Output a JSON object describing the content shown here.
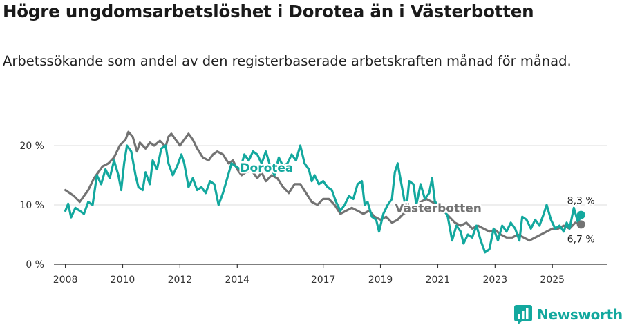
{
  "title": "Högre ungdomsarbetslöshet i Dorotea än i Västerbotten",
  "subtitle": "Arbetssökande som andel av den registerbaserade arbetskraften månad för månad.",
  "brand": {
    "name": "Newsworthy",
    "icon": "newsworthy-logo-icon"
  },
  "colors": {
    "dorotea": "#13a89e",
    "vasterbotten": "#737373",
    "grid": "#dddddd",
    "axis": "#333333"
  },
  "chart_data": {
    "type": "line",
    "title": "Högre ungdomsarbetslöshet i Dorotea än i Västerbotten",
    "xlabel": "",
    "ylabel": "",
    "x_range": [
      2007.6,
      2026.9
    ],
    "ylim": [
      0,
      20
    ],
    "y_ticks": [
      0,
      10,
      20
    ],
    "y_tick_labels": [
      "0 %",
      "10 %",
      "20 %"
    ],
    "x_ticks": [
      2008,
      2010,
      2012,
      2014,
      2017,
      2019,
      2021,
      2023,
      2025
    ],
    "x_tick_labels": [
      "2008",
      "2010",
      "2012",
      "2014",
      "2017",
      "2019",
      "2021",
      "2023",
      "2025"
    ],
    "grid": true,
    "series": [
      {
        "name": "Västerbotten",
        "label": "Västerbotten",
        "label_anchor": [
          2019.5,
          8.8
        ],
        "end_label": "6,7 %",
        "color": "#737373",
        "points": [
          [
            2008.0,
            12.5
          ],
          [
            2008.3,
            11.5
          ],
          [
            2008.5,
            10.5
          ],
          [
            2008.8,
            12.5
          ],
          [
            2009.0,
            14.5
          ],
          [
            2009.3,
            16.5
          ],
          [
            2009.5,
            17.0
          ],
          [
            2009.7,
            18.0
          ],
          [
            2009.9,
            20.0
          ],
          [
            2010.1,
            21.0
          ],
          [
            2010.2,
            22.3
          ],
          [
            2010.35,
            21.5
          ],
          [
            2010.5,
            19.0
          ],
          [
            2010.6,
            20.5
          ],
          [
            2010.8,
            19.5
          ],
          [
            2010.95,
            20.5
          ],
          [
            2011.1,
            20.0
          ],
          [
            2011.3,
            20.8
          ],
          [
            2011.5,
            19.8
          ],
          [
            2011.6,
            21.5
          ],
          [
            2011.7,
            22.0
          ],
          [
            2011.85,
            21.0
          ],
          [
            2012.0,
            20.0
          ],
          [
            2012.15,
            21.0
          ],
          [
            2012.3,
            22.0
          ],
          [
            2012.45,
            21.0
          ],
          [
            2012.6,
            19.5
          ],
          [
            2012.8,
            18.0
          ],
          [
            2013.0,
            17.5
          ],
          [
            2013.15,
            18.5
          ],
          [
            2013.3,
            19.0
          ],
          [
            2013.5,
            18.5
          ],
          [
            2013.7,
            17.0
          ],
          [
            2013.85,
            17.5
          ],
          [
            2014.0,
            16.0
          ],
          [
            2014.15,
            15.0
          ],
          [
            2014.3,
            15.5
          ],
          [
            2014.5,
            15.8
          ],
          [
            2014.7,
            14.5
          ],
          [
            2014.85,
            15.5
          ],
          [
            2015.0,
            14.0
          ],
          [
            2015.2,
            15.0
          ],
          [
            2015.4,
            14.5
          ],
          [
            2015.6,
            13.0
          ],
          [
            2015.8,
            12.0
          ],
          [
            2016.0,
            13.5
          ],
          [
            2016.2,
            13.5
          ],
          [
            2016.4,
            12.0
          ],
          [
            2016.6,
            10.5
          ],
          [
            2016.8,
            10.0
          ],
          [
            2017.0,
            11.0
          ],
          [
            2017.2,
            11.0
          ],
          [
            2017.4,
            10.0
          ],
          [
            2017.6,
            8.5
          ],
          [
            2017.8,
            9.0
          ],
          [
            2018.0,
            9.5
          ],
          [
            2018.2,
            9.0
          ],
          [
            2018.4,
            8.5
          ],
          [
            2018.6,
            9.0
          ],
          [
            2018.8,
            8.0
          ],
          [
            2019.0,
            7.5
          ],
          [
            2019.2,
            8.0
          ],
          [
            2019.4,
            7.0
          ],
          [
            2019.6,
            7.5
          ],
          [
            2019.8,
            8.5
          ],
          [
            2020.0,
            9.0
          ],
          [
            2020.2,
            9.5
          ],
          [
            2020.4,
            10.5
          ],
          [
            2020.6,
            11.0
          ],
          [
            2020.8,
            10.5
          ],
          [
            2021.0,
            10.0
          ],
          [
            2021.2,
            9.0
          ],
          [
            2021.4,
            8.0
          ],
          [
            2021.6,
            7.0
          ],
          [
            2021.8,
            6.5
          ],
          [
            2022.0,
            7.0
          ],
          [
            2022.2,
            6.0
          ],
          [
            2022.4,
            6.5
          ],
          [
            2022.6,
            6.0
          ],
          [
            2022.8,
            5.5
          ],
          [
            2023.0,
            5.8
          ],
          [
            2023.2,
            5.0
          ],
          [
            2023.4,
            4.5
          ],
          [
            2023.6,
            4.5
          ],
          [
            2023.8,
            5.0
          ],
          [
            2024.0,
            4.5
          ],
          [
            2024.2,
            4.0
          ],
          [
            2024.4,
            4.5
          ],
          [
            2024.6,
            5.0
          ],
          [
            2024.8,
            5.5
          ],
          [
            2025.0,
            6.0
          ],
          [
            2025.2,
            6.0
          ],
          [
            2025.4,
            6.5
          ],
          [
            2025.6,
            6.0
          ],
          [
            2025.8,
            7.0
          ],
          [
            2026.0,
            6.7
          ]
        ]
      },
      {
        "name": "Dorotea",
        "label": "Dorotea",
        "label_anchor": [
          2014.1,
          15.6
        ],
        "end_label": "8,3 %",
        "color": "#13a89e",
        "points": [
          [
            2008.0,
            9.0
          ],
          [
            2008.1,
            10.2
          ],
          [
            2008.2,
            7.9
          ],
          [
            2008.35,
            9.5
          ],
          [
            2008.5,
            9.0
          ],
          [
            2008.65,
            8.5
          ],
          [
            2008.8,
            10.5
          ],
          [
            2008.95,
            10.0
          ],
          [
            2009.1,
            15.0
          ],
          [
            2009.25,
            13.5
          ],
          [
            2009.4,
            16.0
          ],
          [
            2009.55,
            14.5
          ],
          [
            2009.7,
            17.5
          ],
          [
            2009.85,
            15.0
          ],
          [
            2009.95,
            12.5
          ],
          [
            2010.05,
            17.0
          ],
          [
            2010.15,
            20.0
          ],
          [
            2010.3,
            19.0
          ],
          [
            2010.45,
            15.0
          ],
          [
            2010.55,
            13.0
          ],
          [
            2010.7,
            12.5
          ],
          [
            2010.8,
            15.5
          ],
          [
            2010.95,
            13.5
          ],
          [
            2011.05,
            17.5
          ],
          [
            2011.2,
            16.0
          ],
          [
            2011.35,
            19.5
          ],
          [
            2011.5,
            20.0
          ],
          [
            2011.6,
            17.0
          ],
          [
            2011.75,
            15.0
          ],
          [
            2011.9,
            16.5
          ],
          [
            2012.05,
            18.5
          ],
          [
            2012.15,
            17.0
          ],
          [
            2012.3,
            13.0
          ],
          [
            2012.45,
            14.5
          ],
          [
            2012.6,
            12.5
          ],
          [
            2012.75,
            13.0
          ],
          [
            2012.9,
            12.0
          ],
          [
            2013.05,
            14.0
          ],
          [
            2013.2,
            13.5
          ],
          [
            2013.35,
            10.0
          ],
          [
            2013.5,
            12.0
          ],
          [
            2013.65,
            14.5
          ],
          [
            2013.8,
            17.0
          ],
          [
            2013.95,
            16.5
          ],
          [
            2014.1,
            16.0
          ],
          [
            2014.25,
            18.5
          ],
          [
            2014.4,
            17.5
          ],
          [
            2014.55,
            19.0
          ],
          [
            2014.7,
            18.5
          ],
          [
            2014.85,
            17.0
          ],
          [
            2015.0,
            19.0
          ],
          [
            2015.15,
            16.5
          ],
          [
            2015.3,
            15.0
          ],
          [
            2015.45,
            18.0
          ],
          [
            2015.6,
            16.5
          ],
          [
            2015.75,
            17.0
          ],
          [
            2015.9,
            18.5
          ],
          [
            2016.05,
            17.5
          ],
          [
            2016.2,
            20.0
          ],
          [
            2016.35,
            17.0
          ],
          [
            2016.5,
            16.0
          ],
          [
            2016.6,
            14.0
          ],
          [
            2016.7,
            15.0
          ],
          [
            2016.85,
            13.5
          ],
          [
            2017.0,
            14.0
          ],
          [
            2017.15,
            13.0
          ],
          [
            2017.3,
            12.5
          ],
          [
            2017.45,
            10.5
          ],
          [
            2017.6,
            9.0
          ],
          [
            2017.75,
            10.0
          ],
          [
            2017.9,
            11.5
          ],
          [
            2018.05,
            11.0
          ],
          [
            2018.2,
            13.5
          ],
          [
            2018.35,
            14.0
          ],
          [
            2018.45,
            10.0
          ],
          [
            2018.55,
            10.5
          ],
          [
            2018.7,
            8.0
          ],
          [
            2018.85,
            7.5
          ],
          [
            2018.95,
            5.5
          ],
          [
            2019.1,
            8.5
          ],
          [
            2019.25,
            10.0
          ],
          [
            2019.4,
            11.0
          ],
          [
            2019.5,
            15.5
          ],
          [
            2019.6,
            17.0
          ],
          [
            2019.75,
            13.0
          ],
          [
            2019.9,
            9.0
          ],
          [
            2020.0,
            14.0
          ],
          [
            2020.15,
            13.5
          ],
          [
            2020.25,
            10.0
          ],
          [
            2020.4,
            13.5
          ],
          [
            2020.55,
            11.0
          ],
          [
            2020.7,
            12.0
          ],
          [
            2020.8,
            14.5
          ],
          [
            2020.9,
            10.5
          ],
          [
            2021.05,
            10.0
          ],
          [
            2021.2,
            9.5
          ],
          [
            2021.35,
            8.0
          ],
          [
            2021.5,
            4.0
          ],
          [
            2021.65,
            6.5
          ],
          [
            2021.8,
            5.5
          ],
          [
            2021.9,
            3.5
          ],
          [
            2022.05,
            5.0
          ],
          [
            2022.2,
            4.5
          ],
          [
            2022.35,
            6.5
          ],
          [
            2022.5,
            4.0
          ],
          [
            2022.65,
            2.0
          ],
          [
            2022.8,
            2.5
          ],
          [
            2022.95,
            6.0
          ],
          [
            2023.1,
            4.0
          ],
          [
            2023.25,
            6.5
          ],
          [
            2023.4,
            5.5
          ],
          [
            2023.55,
            7.0
          ],
          [
            2023.7,
            6.0
          ],
          [
            2023.85,
            4.0
          ],
          [
            2023.95,
            8.0
          ],
          [
            2024.1,
            7.5
          ],
          [
            2024.25,
            6.0
          ],
          [
            2024.4,
            7.5
          ],
          [
            2024.55,
            6.5
          ],
          [
            2024.7,
            8.5
          ],
          [
            2024.8,
            10.0
          ],
          [
            2024.95,
            7.5
          ],
          [
            2025.1,
            6.0
          ],
          [
            2025.25,
            6.5
          ],
          [
            2025.4,
            5.5
          ],
          [
            2025.5,
            7.0
          ],
          [
            2025.6,
            6.0
          ],
          [
            2025.75,
            9.5
          ],
          [
            2025.9,
            7.0
          ],
          [
            2026.0,
            8.3
          ]
        ]
      }
    ]
  }
}
